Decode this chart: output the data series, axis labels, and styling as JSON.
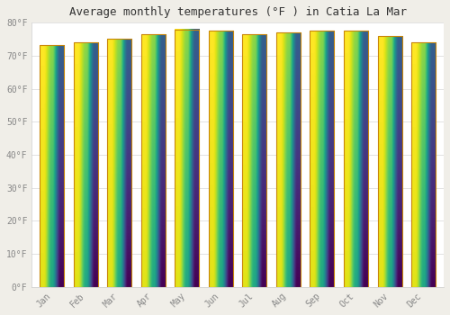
{
  "title": "Average monthly temperatures (°F ) in Catia La Mar",
  "months": [
    "Jan",
    "Feb",
    "Mar",
    "Apr",
    "May",
    "Jun",
    "Jul",
    "Aug",
    "Sep",
    "Oct",
    "Nov",
    "Dec"
  ],
  "temperatures": [
    73.2,
    74.0,
    75.2,
    76.6,
    78.0,
    77.5,
    76.6,
    77.0,
    77.5,
    77.5,
    76.0,
    74.1
  ],
  "bar_color_top": "#FFD966",
  "bar_color_bottom": "#F5A623",
  "bar_edge_color": "#C8860A",
  "background_color": "#f0eee8",
  "plot_bg_color": "#ffffff",
  "ylim": [
    0,
    80
  ],
  "ytick_step": 10,
  "title_fontsize": 9,
  "tick_fontsize": 7,
  "grid_color": "#dddddd",
  "font_family": "monospace"
}
